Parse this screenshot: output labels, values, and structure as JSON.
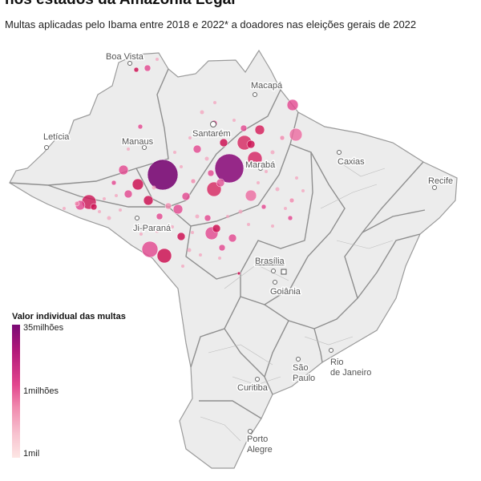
{
  "title": "nos estados da Amazônia Legal",
  "subtitle": "Multas aplicadas pelo Ibama entre 2018 e 2022* a doadores nas eleições gerais de 2022",
  "cities": [
    {
      "name": "Boa Vista"
    },
    {
      "name": "Macapá"
    },
    {
      "name": "Letícia"
    },
    {
      "name": "Manaus"
    },
    {
      "name": "Santarém"
    },
    {
      "name": "Marabá"
    },
    {
      "name": "Caxias"
    },
    {
      "name": "Recife"
    },
    {
      "name": "Ji-Paraná"
    },
    {
      "name": "Brasília"
    },
    {
      "name": "Goiânia"
    },
    {
      "name": "São Paulo"
    },
    {
      "name": "Rio de Janeiro"
    },
    {
      "name": "Curitiba"
    },
    {
      "name": "Porto Alegre"
    }
  ],
  "legend": {
    "title": "Valor individual das multas",
    "max_label": "35milhões",
    "mid_label": "1milhões",
    "min_label": "1mil",
    "colors": [
      "#7a0a74",
      "#e2468e",
      "#fde6e4"
    ]
  },
  "colors": {
    "land": "#ececec",
    "borders": "#8a8a8a",
    "dark_fine": "#7a0a74",
    "high_fine": "#cc1455",
    "mid_fine": "#e2468e",
    "low_fine": "#f4a3bd"
  }
}
